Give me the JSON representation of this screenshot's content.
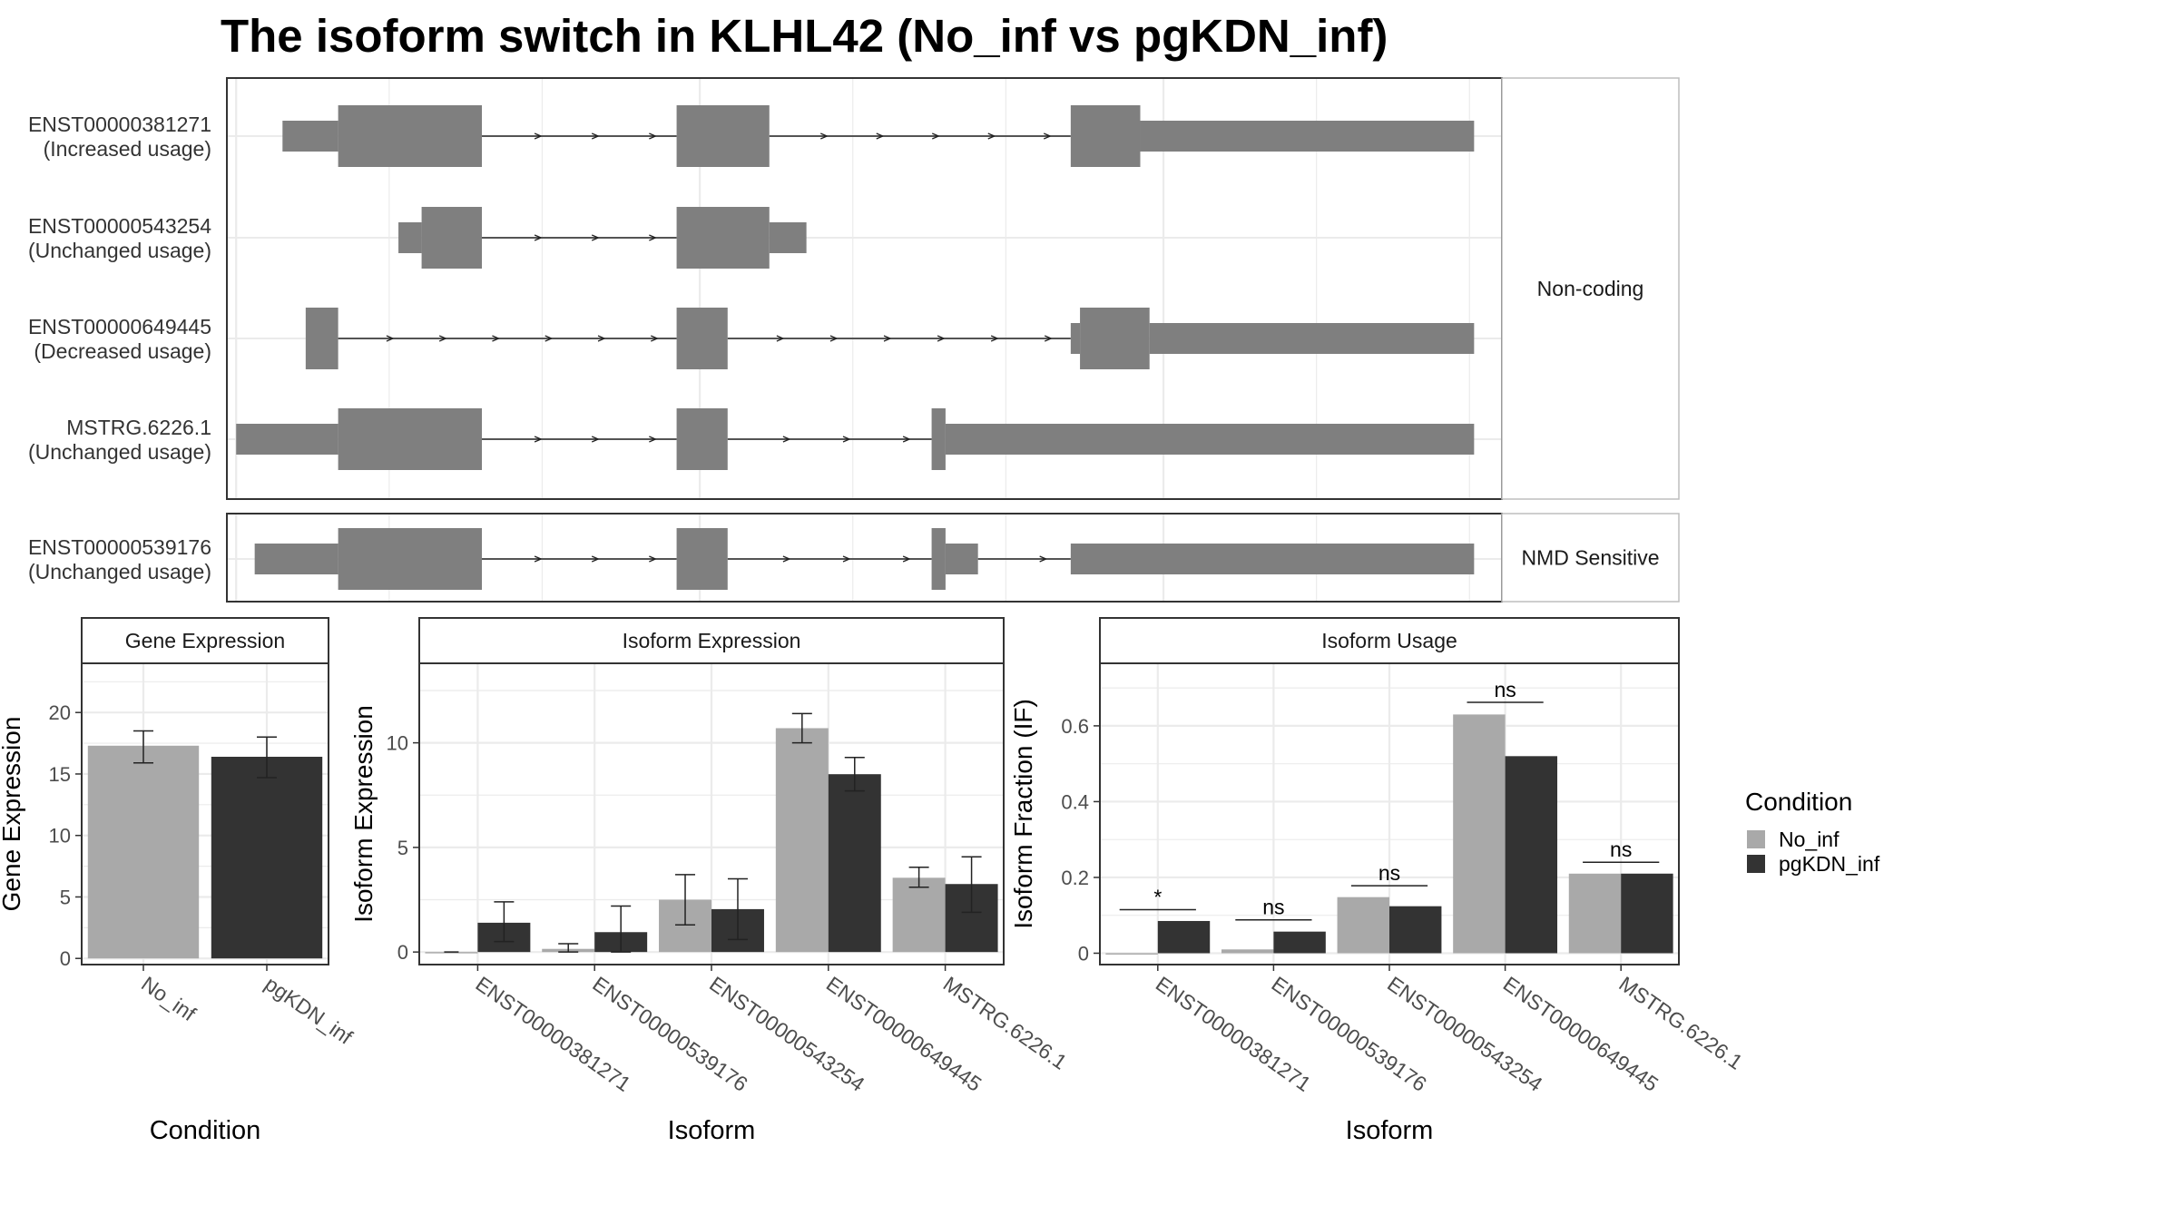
{
  "title": "The isoform switch in KLHL42 (No_inf vs pgKDN_inf)",
  "colors": {
    "No_inf": "#a9a9a9",
    "pgKDN_inf": "#333333",
    "exon": "#7f7f7f",
    "strip": "#ffffff",
    "panel_border": "#333333",
    "grid": "#ebebeb"
  },
  "chart_data": [
    {
      "type": "gene-structure",
      "groups": [
        {
          "name": "Non-coding",
          "transcripts": [
            {
              "id": "ENST00000381271",
              "usage": "(Increased usage)",
              "thin": [
                [
                  0.1,
                  0.22
                ]
              ],
              "thick": [
                [
                  0.22,
                  0.53
                ],
                [
                  0.95,
                  1.15
                ],
                [
                  1.8,
                  1.95
                ]
              ],
              "thin_after": [
                [
                  1.95,
                  2.67
                ]
              ],
              "introns": [
                [
                  0.53,
                  0.95
                ],
                [
                  1.15,
                  1.8
                ]
              ]
            },
            {
              "id": "ENST00000543254",
              "usage": "(Unchanged usage)",
              "thin": [
                [
                  0.35,
                  0.4
                ],
                [
                  1.15,
                  1.23
                ]
              ],
              "thick": [
                [
                  0.4,
                  0.53
                ],
                [
                  0.95,
                  1.15
                ]
              ],
              "introns": [
                [
                  0.53,
                  0.95
                ]
              ]
            },
            {
              "id": "ENST00000649445",
              "usage": "(Decreased usage)",
              "thin": [
                [
                  1.8,
                  1.82
                ],
                [
                  1.97,
                  2.67
                ]
              ],
              "thick": [
                [
                  0.15,
                  0.22
                ],
                [
                  0.95,
                  1.06
                ],
                [
                  1.82,
                  1.97
                ]
              ],
              "introns": [
                [
                  0.22,
                  0.95
                ],
                [
                  1.06,
                  1.8
                ]
              ]
            },
            {
              "id": "MSTRG.6226.1",
              "usage": "(Unchanged usage)",
              "thin": [
                [
                  0.0,
                  0.22
                ],
                [
                  1.53,
                  2.67
                ]
              ],
              "thick": [
                [
                  0.22,
                  0.53
                ],
                [
                  0.95,
                  1.06
                ],
                [
                  1.5,
                  1.53
                ]
              ],
              "introns": [
                [
                  0.53,
                  0.95
                ],
                [
                  1.06,
                  1.5
                ]
              ]
            }
          ]
        },
        {
          "name": "NMD Sensitive",
          "transcripts": [
            {
              "id": "ENST00000539176",
              "usage": "(Unchanged usage)",
              "thin": [
                [
                  0.04,
                  0.22
                ],
                [
                  1.53,
                  1.6
                ],
                [
                  1.8,
                  2.67
                ]
              ],
              "thick": [
                [
                  0.22,
                  0.53
                ],
                [
                  0.95,
                  1.06
                ],
                [
                  1.5,
                  1.53
                ]
              ],
              "introns": [
                [
                  0.53,
                  0.95
                ],
                [
                  1.06,
                  1.5
                ],
                [
                  1.6,
                  1.8
                ]
              ]
            }
          ]
        }
      ],
      "xlim": [
        -0.02,
        2.73
      ]
    },
    {
      "type": "bar",
      "title": "Gene Expression",
      "xlabel": "Condition",
      "ylabel": "Gene Expression",
      "categories": [
        "No_inf",
        "pgKDN_inf"
      ],
      "values": [
        17.3,
        16.4
      ],
      "errors": [
        [
          15.9,
          18.5
        ],
        [
          14.7,
          18.0
        ]
      ],
      "ylim": [
        -0.5,
        24
      ],
      "yticks": [
        0,
        5,
        10,
        15,
        20
      ]
    },
    {
      "type": "bar",
      "title": "Isoform Expression",
      "xlabel": "Isoform",
      "ylabel": "Isoform Expression",
      "categories": [
        "ENST00000381271",
        "ENST00000539176",
        "ENST00000543254",
        "ENST00000649445",
        "MSTRG.6226.1"
      ],
      "series": [
        {
          "name": "No_inf",
          "values": [
            0.0,
            0.15,
            2.5,
            10.7,
            3.55
          ],
          "errors": [
            [
              0.0,
              0.0
            ],
            [
              0.0,
              0.4
            ],
            [
              1.3,
              3.7
            ],
            [
              10.0,
              11.4
            ],
            [
              3.1,
              4.05
            ]
          ]
        },
        {
          "name": "pgKDN_inf",
          "values": [
            1.4,
            0.95,
            2.05,
            8.5,
            3.25
          ],
          "errors": [
            [
              0.5,
              2.4
            ],
            [
              0.0,
              2.2
            ],
            [
              0.6,
              3.5
            ],
            [
              7.7,
              9.3
            ],
            [
              1.9,
              4.55
            ]
          ]
        }
      ],
      "ylim": [
        -0.6,
        13.8
      ],
      "yticks": [
        0,
        5,
        10
      ]
    },
    {
      "type": "bar",
      "title": "Isoform Usage",
      "xlabel": "Isoform",
      "ylabel": "Isoform Fraction (IF)",
      "categories": [
        "ENST00000381271",
        "ENST00000539176",
        "ENST00000543254",
        "ENST00000649445",
        "MSTRG.6226.1"
      ],
      "series": [
        {
          "name": "No_inf",
          "values": [
            0.0,
            0.01,
            0.148,
            0.63,
            0.21
          ]
        },
        {
          "name": "pgKDN_inf",
          "values": [
            0.085,
            0.057,
            0.124,
            0.52,
            0.21
          ]
        }
      ],
      "significance": [
        {
          "label": "*",
          "y": 0.115
        },
        {
          "label": "ns",
          "y": 0.088
        },
        {
          "label": "ns",
          "y": 0.178
        },
        {
          "label": "ns",
          "y": 0.662
        },
        {
          "label": "ns",
          "y": 0.24
        }
      ],
      "ylim": [
        -0.03,
        0.765
      ],
      "yticks": [
        0.0,
        0.2,
        0.4,
        0.6
      ]
    }
  ],
  "legend": {
    "title": "Condition",
    "items": [
      "No_inf",
      "pgKDN_inf"
    ]
  }
}
